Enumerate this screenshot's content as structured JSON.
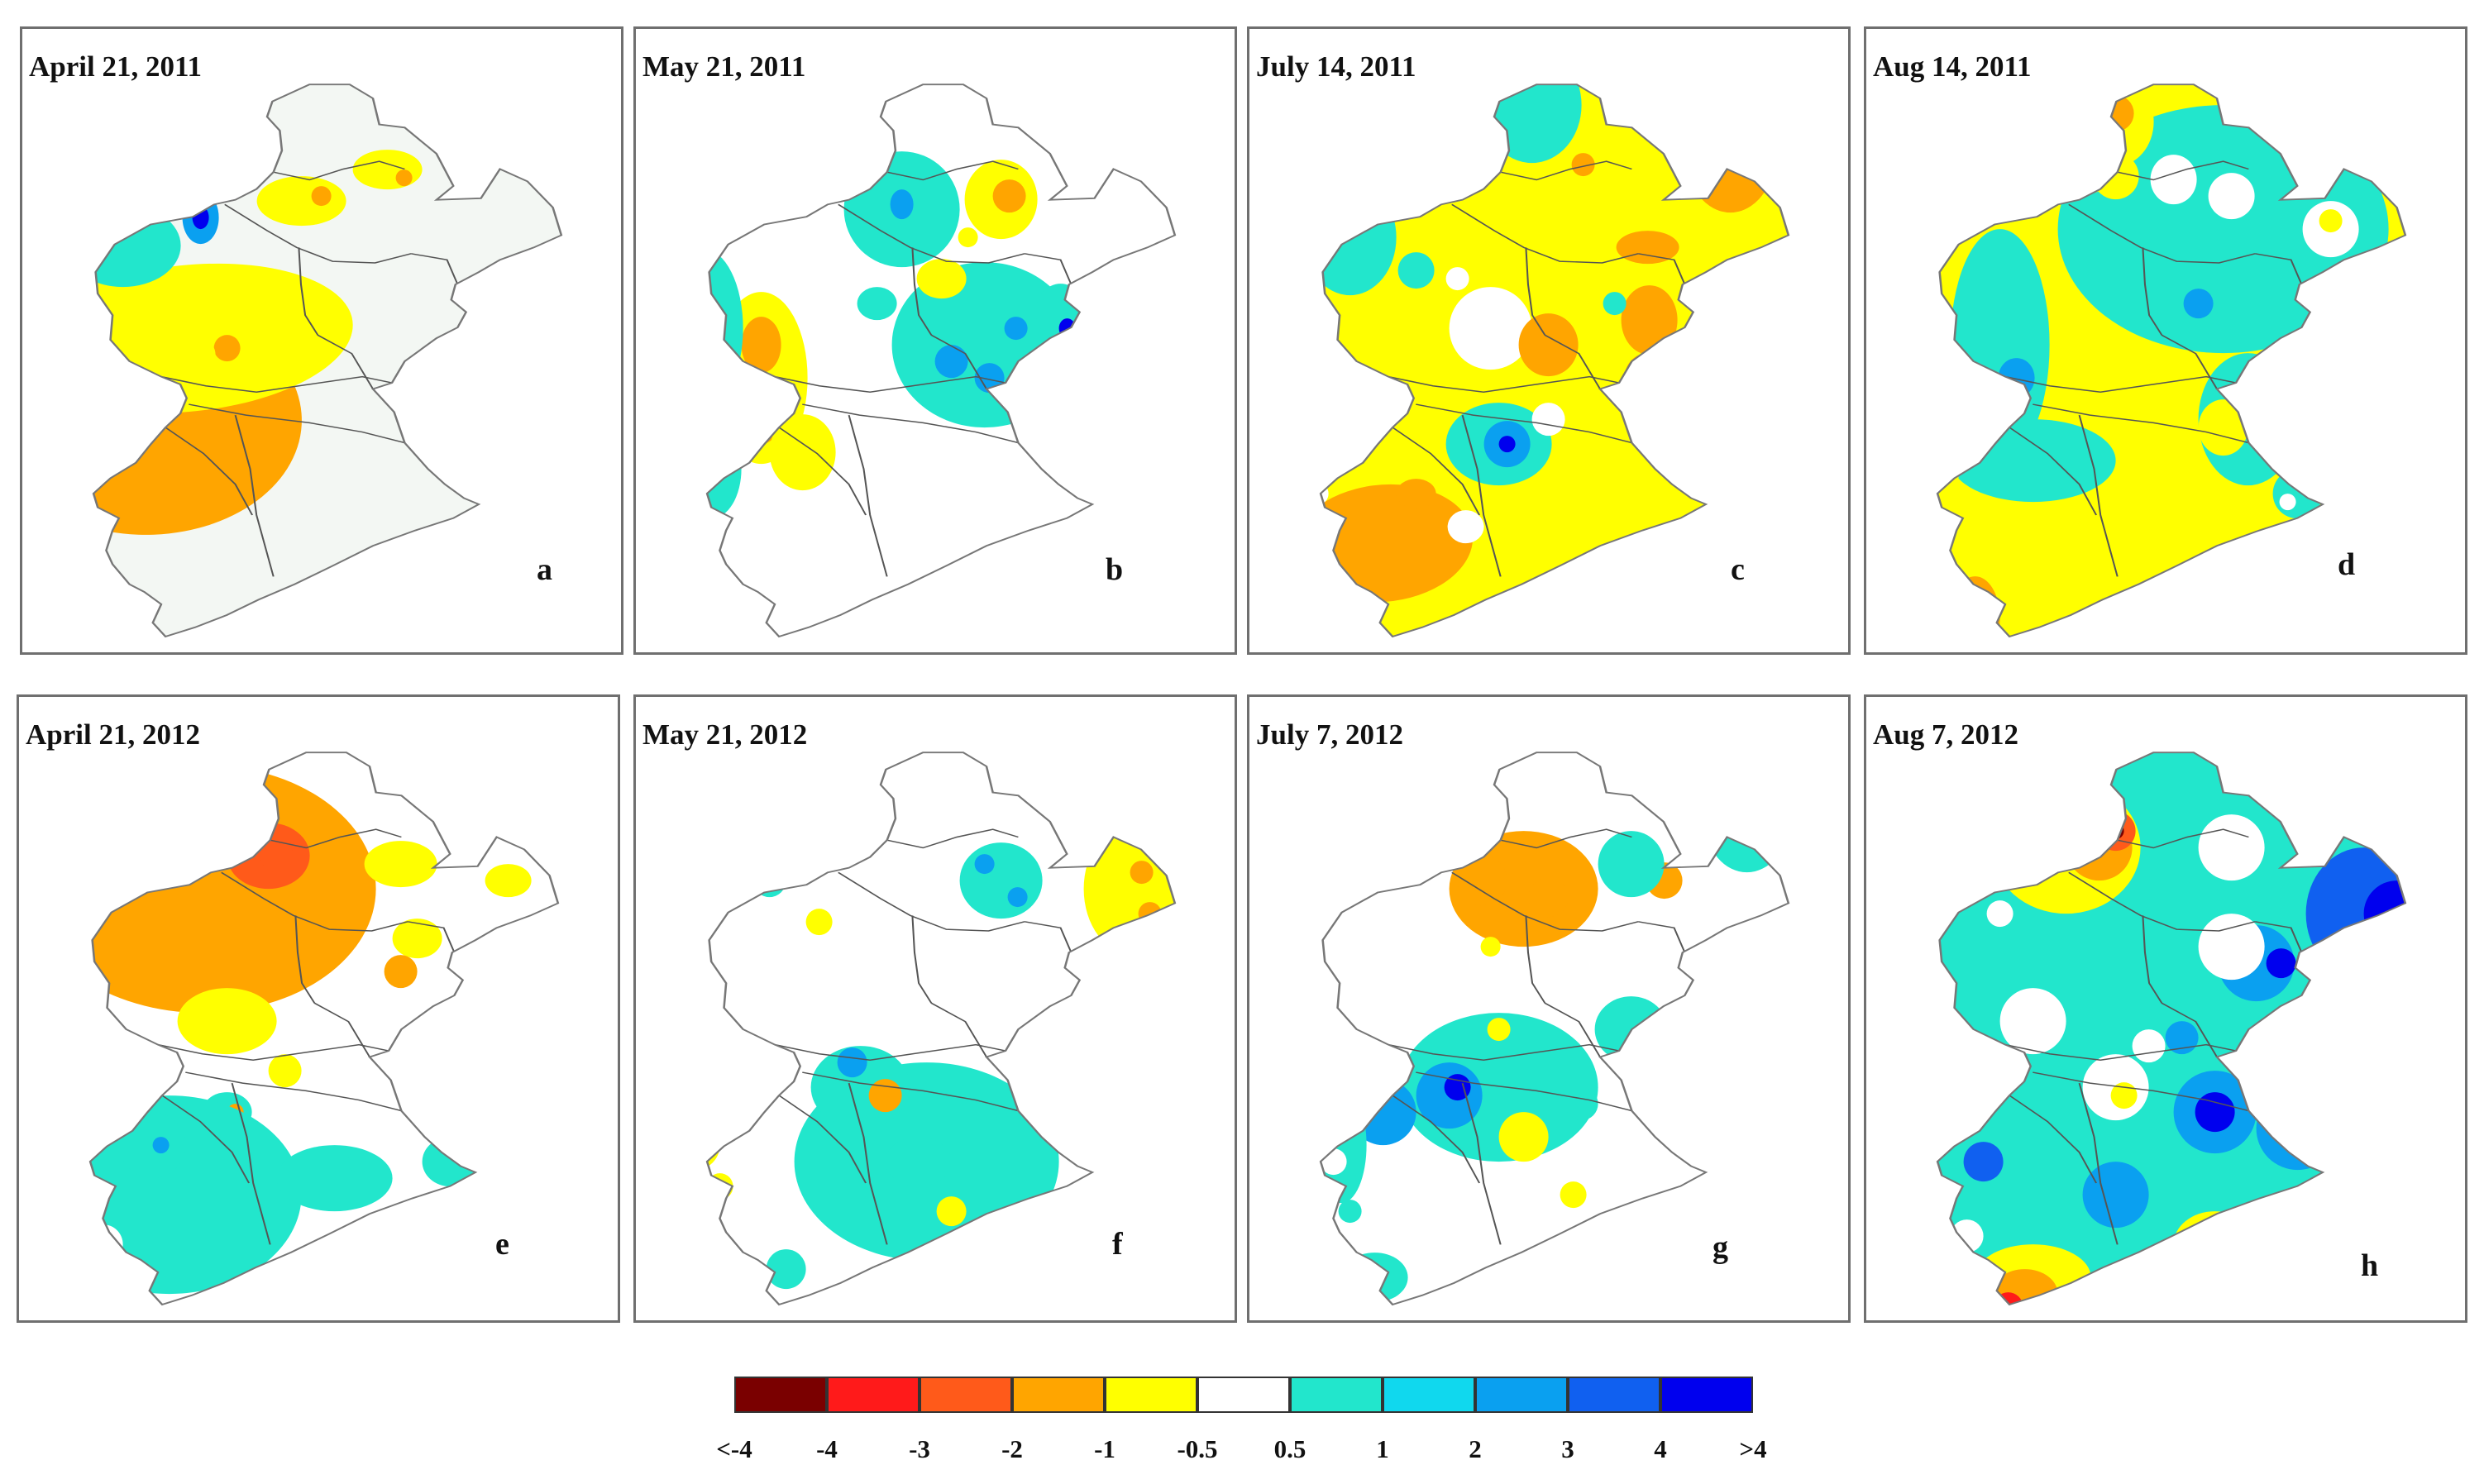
{
  "panels": [
    {
      "date": "April 21, 2011",
      "letter": "a",
      "dominant": "near-zero with orange (-2) south and cyan north",
      "base": "#f3f7f3"
    },
    {
      "date": "May 21, 2011",
      "letter": "b",
      "dominant": "near-zero with cyan patches",
      "base": "#ffffff"
    },
    {
      "date": "July 14, 2011",
      "letter": "c",
      "dominant": "yellow (-1)",
      "base": "#ffff00"
    },
    {
      "date": "Aug 14, 2011",
      "letter": "d",
      "dominant": "cyan (0.5) and yellow (-1)",
      "base": "#ffff00"
    },
    {
      "date": "April 21, 2012",
      "letter": "e",
      "dominant": "orange (-2) north, cyan south",
      "base": "#ffffff"
    },
    {
      "date": "May 21, 2012",
      "letter": "f",
      "dominant": "near-zero with cyan band",
      "base": "#ffffff"
    },
    {
      "date": "July 7, 2012",
      "letter": "g",
      "dominant": "cyan and near-zero",
      "base": "#ffffff"
    },
    {
      "date": "Aug 7, 2012",
      "letter": "h",
      "dominant": "cyan (0.5 to 1) with blue patches",
      "base": "#22e6cc"
    }
  ],
  "legend": {
    "colors": [
      "#7a0000",
      "#ff1a1a",
      "#ff5a1a",
      "#ffa500",
      "#ffff00",
      "#ffffff",
      "#22e6cc",
      "#10d8ee",
      "#0aa0f0",
      "#1060f0",
      "#0000ee"
    ],
    "ticks": [
      "<-4",
      "-4",
      "-3",
      "-2",
      "-1",
      "-0.5",
      "0.5",
      "1",
      "2",
      "3",
      "4",
      ">4"
    ]
  }
}
